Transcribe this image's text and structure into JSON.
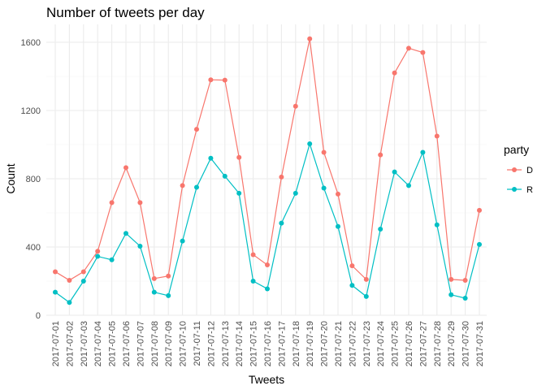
{
  "chart_data": {
    "type": "line",
    "title": "Number of tweets per day",
    "xlabel": "Tweets",
    "ylabel": "Count",
    "categories": [
      "2017-07-01",
      "2017-07-02",
      "2017-07-03",
      "2017-07-04",
      "2017-07-05",
      "2017-07-06",
      "2017-07-07",
      "2017-07-08",
      "2017-07-09",
      "2017-07-10",
      "2017-07-11",
      "2017-07-12",
      "2017-07-13",
      "2017-07-14",
      "2017-07-15",
      "2017-07-16",
      "2017-07-17",
      "2017-07-18",
      "2017-07-19",
      "2017-07-20",
      "2017-07-21",
      "2017-07-22",
      "2017-07-23",
      "2017-07-24",
      "2017-07-25",
      "2017-07-26",
      "2017-07-27",
      "2017-07-28",
      "2017-07-29",
      "2017-07-30",
      "2017-07-31"
    ],
    "yticks": [
      0,
      400,
      800,
      1200,
      1600
    ],
    "ylim": [
      0,
      1650
    ],
    "grid": true,
    "legend": {
      "title": "party",
      "position": "right"
    },
    "series": [
      {
        "name": "D",
        "color": "#F8766D",
        "values": [
          255,
          205,
          255,
          375,
          660,
          865,
          660,
          215,
          230,
          760,
          1090,
          1380,
          1378,
          925,
          355,
          295,
          810,
          1225,
          1620,
          955,
          710,
          290,
          210,
          940,
          1420,
          1565,
          1540,
          1050,
          210,
          205,
          615
        ]
      },
      {
        "name": "R",
        "color": "#00BFC4",
        "values": [
          135,
          75,
          200,
          345,
          325,
          480,
          405,
          135,
          115,
          435,
          750,
          920,
          815,
          715,
          200,
          155,
          540,
          715,
          1005,
          745,
          520,
          175,
          110,
          505,
          840,
          760,
          955,
          530,
          120,
          100,
          415
        ]
      }
    ]
  }
}
